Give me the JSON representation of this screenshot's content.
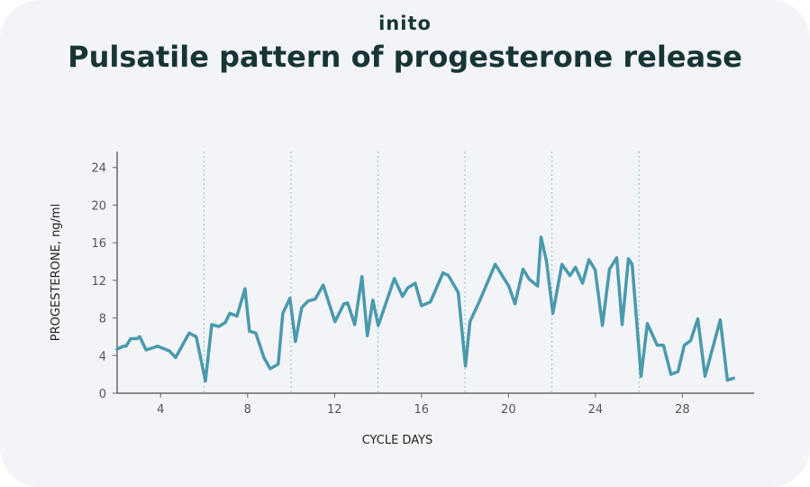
{
  "brand": {
    "logo_text": "inito"
  },
  "chart_data": {
    "type": "line",
    "title": "Pulsatile pattern of progesterone release",
    "xlabel": "CYCLE DAYS",
    "ylabel": "PROGESTERONE, ng/ml",
    "xlim": [
      2,
      31.3
    ],
    "ylim": [
      0,
      25.7
    ],
    "xticks": [
      4,
      8,
      12,
      16,
      20,
      24,
      28
    ],
    "yticks": [
      0,
      4,
      8,
      12,
      16,
      20,
      24
    ],
    "grid": false,
    "reference_lines_x": [
      6,
      10,
      14,
      18,
      22,
      26
    ],
    "colors": {
      "line": "#4a9aad",
      "reference": "#7fc4d0",
      "axis": "#666666"
    },
    "series": [
      {
        "x": [
          2.0,
          2.29,
          2.41,
          2.62,
          2.91,
          3.04,
          3.33,
          3.86,
          4.4,
          4.69,
          5.31,
          5.64,
          6.06,
          6.35,
          6.68,
          6.97,
          7.18,
          7.51,
          7.88,
          8.09,
          8.38,
          8.75,
          9.04,
          9.41,
          9.62,
          9.95,
          10.2,
          10.49,
          10.78,
          11.11,
          11.48,
          12.02,
          12.43,
          12.6,
          12.93,
          13.26,
          13.51,
          13.76,
          14.01,
          14.75,
          15.13,
          15.37,
          15.71,
          16.0,
          16.41,
          16.99,
          17.24,
          17.69,
          18.02,
          18.23,
          18.69,
          19.39,
          20.01,
          20.3,
          20.67,
          20.96,
          21.34,
          21.5,
          21.75,
          22.04,
          22.46,
          22.83,
          23.08,
          23.41,
          23.7,
          23.99,
          24.32,
          24.65,
          24.98,
          25.23,
          25.52,
          25.69,
          26.1,
          26.39,
          26.84,
          27.13,
          27.47,
          27.8,
          28.09,
          28.38,
          28.71,
          29.04,
          29.74,
          30.07,
          30.36
        ],
        "y": [
          4.7,
          5.0,
          5.0,
          5.8,
          5.8,
          6.0,
          4.6,
          5.0,
          4.5,
          3.8,
          6.4,
          6.0,
          1.3,
          7.3,
          7.1,
          7.5,
          8.5,
          8.2,
          11.1,
          6.6,
          6.4,
          3.8,
          2.6,
          3.1,
          8.5,
          10.1,
          5.5,
          9.1,
          9.8,
          10.0,
          11.5,
          7.6,
          9.5,
          9.6,
          7.3,
          12.4,
          6.1,
          9.9,
          7.2,
          12.2,
          10.3,
          11.2,
          11.7,
          9.3,
          9.7,
          12.8,
          12.5,
          10.7,
          2.9,
          7.6,
          9.9,
          13.7,
          11.4,
          9.5,
          13.2,
          12.1,
          11.4,
          16.6,
          14.0,
          8.5,
          13.7,
          12.5,
          13.4,
          11.7,
          14.2,
          13.1,
          7.2,
          13.2,
          14.4,
          7.3,
          14.3,
          13.7,
          1.8,
          7.4,
          5.1,
          5.1,
          2.0,
          2.3,
          5.1,
          5.6,
          7.9,
          1.8,
          7.8,
          1.4,
          1.6
        ]
      }
    ]
  }
}
